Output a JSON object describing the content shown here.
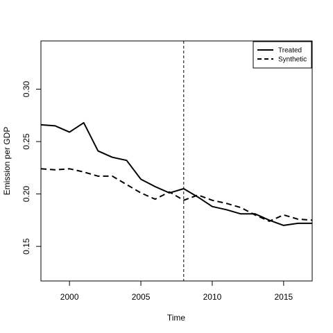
{
  "chart_data": {
    "type": "line",
    "title": "",
    "xlabel": "Time",
    "ylabel": "Emission per GDP",
    "xlim": [
      1998,
      2017
    ],
    "ylim": [
      0.117,
      0.346
    ],
    "x_ticks": [
      2000,
      2005,
      2010,
      2015
    ],
    "y_ticks": [
      0.15,
      0.2,
      0.25,
      0.3
    ],
    "x_tick_labels": [
      "2000",
      "2005",
      "2010",
      "2015"
    ],
    "y_tick_labels": [
      "0.15",
      "0.20",
      "0.25",
      "0.30"
    ],
    "grid": false,
    "legend_position": "top-right",
    "vertical_line": {
      "x": 2008,
      "style": "dashed",
      "color": "#000000"
    },
    "x": [
      1998,
      1999,
      2000,
      2001,
      2002,
      2003,
      2004,
      2005,
      2006,
      2007,
      2008,
      2009,
      2010,
      2011,
      2012,
      2013,
      2014,
      2015,
      2016,
      2017
    ],
    "series": [
      {
        "name": "Treated",
        "style": "solid",
        "color": "#000000",
        "values": [
          0.266,
          0.265,
          0.259,
          0.268,
          0.241,
          0.235,
          0.232,
          0.214,
          0.207,
          0.201,
          0.205,
          0.197,
          0.188,
          0.185,
          0.181,
          0.181,
          0.175,
          0.17,
          0.172,
          0.172
        ]
      },
      {
        "name": "Synthetic",
        "style": "dashed",
        "color": "#000000",
        "values": [
          0.224,
          0.223,
          0.224,
          0.221,
          0.217,
          0.217,
          0.209,
          0.201,
          0.195,
          0.202,
          0.194,
          0.199,
          0.194,
          0.191,
          0.187,
          0.18,
          0.174,
          0.18,
          0.176,
          0.175
        ]
      }
    ]
  }
}
